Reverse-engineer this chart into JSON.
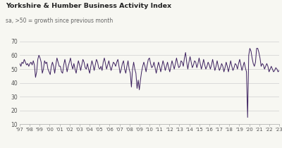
{
  "title": "Yorkshire & Humber Business Activity Index",
  "subtitle": "sa, >50 = growth since previous month",
  "line_color": "#3b1f5e",
  "background_color": "#f7f7f2",
  "ylim": [
    10,
    70
  ],
  "yticks": [
    10,
    20,
    30,
    40,
    50,
    60,
    70
  ],
  "x_labels": [
    "'97",
    "'98",
    "'99",
    "'00",
    "'01",
    "'02",
    "'03",
    "'04",
    "'05",
    "'06",
    "'07",
    "'08",
    "'09",
    "'10",
    "'11",
    "'12",
    "'13",
    "'14",
    "'15",
    "'16",
    "'17",
    "'18",
    "'19",
    "'20",
    "'21",
    "'22",
    "'23"
  ],
  "values": [
    54,
    52,
    55,
    54,
    57,
    55,
    53,
    54,
    52,
    54,
    55,
    53,
    56,
    53,
    44,
    48,
    57,
    60,
    58,
    55,
    47,
    50,
    56,
    54,
    55,
    50,
    48,
    46,
    52,
    55,
    52,
    47,
    53,
    58,
    55,
    52,
    52,
    48,
    47,
    53,
    57,
    53,
    48,
    52,
    55,
    58,
    53,
    50,
    54,
    50,
    47,
    52,
    56,
    53,
    49,
    53,
    57,
    55,
    51,
    50,
    54,
    50,
    47,
    52,
    56,
    53,
    49,
    53,
    57,
    55,
    51,
    50,
    52,
    49,
    55,
    58,
    54,
    50,
    53,
    56,
    52,
    49,
    52,
    55,
    54,
    52,
    55,
    57,
    52,
    47,
    50,
    54,
    56,
    50,
    47,
    52,
    56,
    50,
    47,
    37,
    50,
    55,
    50,
    47,
    36,
    42,
    35,
    42,
    48,
    52,
    55,
    52,
    48,
    53,
    57,
    58,
    54,
    51,
    52,
    55,
    51,
    47,
    51,
    55,
    52,
    48,
    52,
    56,
    53,
    49,
    52,
    55,
    51,
    48,
    52,
    56,
    53,
    50,
    54,
    58,
    54,
    51,
    52,
    56,
    55,
    52,
    58,
    62,
    55,
    50,
    55,
    59,
    55,
    51,
    53,
    56,
    55,
    51,
    54,
    58,
    54,
    50,
    53,
    57,
    53,
    50,
    52,
    55,
    53,
    50,
    53,
    57,
    53,
    49,
    52,
    56,
    52,
    49,
    51,
    54,
    52,
    48,
    51,
    55,
    52,
    48,
    52,
    56,
    52,
    49,
    51,
    54,
    53,
    50,
    54,
    57,
    53,
    49,
    52,
    55,
    51,
    48,
    15,
    60,
    65,
    63,
    58,
    54,
    52,
    55,
    65,
    65,
    62,
    58,
    52,
    54,
    53,
    50,
    52,
    54,
    52,
    48,
    50,
    52,
    50,
    48,
    49,
    51,
    50,
    48,
    49
  ]
}
